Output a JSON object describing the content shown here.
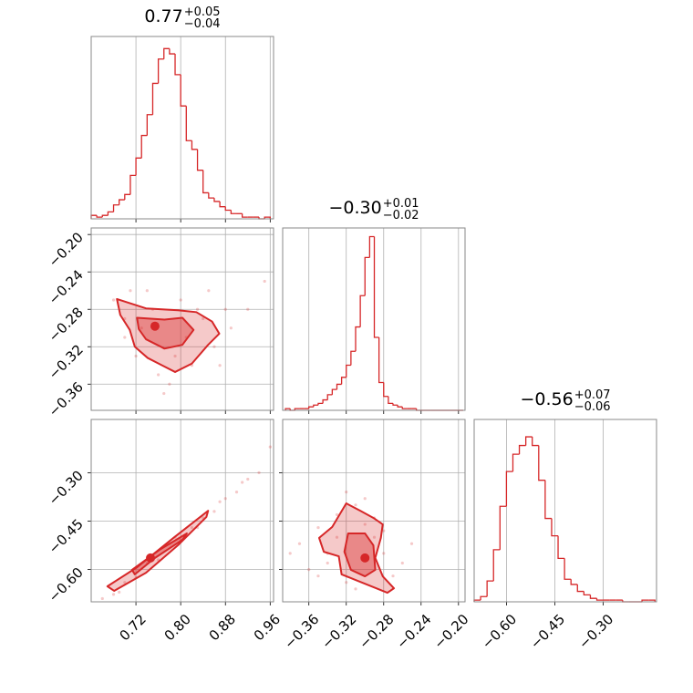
{
  "chart_data": {
    "type": "corner",
    "color": "#d62728",
    "grid": true,
    "parameters": [
      {
        "title": "0.77",
        "title_upper": "+0.05",
        "title_lower": "−0.04",
        "lim": [
          0.64,
          0.966
        ],
        "ticks": [
          0.72,
          {
            "value": 0.8,
            "label": "0.80"
          },
          0.88,
          0.96
        ],
        "bins": [
          0.64,
          0.65,
          0.66,
          0.67,
          0.68,
          0.69,
          0.7,
          0.71,
          0.72,
          0.73,
          0.74,
          0.75,
          0.76,
          0.77,
          0.78,
          0.79,
          0.8,
          0.81,
          0.82,
          0.83,
          0.84,
          0.85,
          0.86,
          0.87,
          0.88,
          0.89,
          0.9,
          0.91,
          0.92,
          0.93,
          0.94,
          0.95,
          0.96
        ],
        "counts": [
          2,
          1,
          2,
          4,
          8,
          11,
          14,
          25,
          35,
          48,
          60,
          78,
          92,
          98,
          95,
          83,
          65,
          45,
          40,
          28,
          15,
          12,
          10,
          7,
          5,
          3,
          3,
          1,
          1,
          1,
          0,
          1
        ],
        "ylim": [
          0,
          105
        ]
      },
      {
        "title": "−0.30",
        "title_upper": "+0.01",
        "title_lower": "−0.02",
        "lim": [
          -0.388,
          -0.193
        ],
        "ticks": [
          {
            "value": -0.36,
            "label": "−0.36"
          },
          {
            "value": -0.32,
            "label": "−0.32"
          },
          {
            "value": -0.28,
            "label": "−0.28"
          },
          {
            "value": -0.24,
            "label": "−0.24"
          },
          {
            "value": -0.2,
            "label": "−0.20"
          }
        ],
        "bins": [
          -0.385,
          -0.38,
          -0.375,
          -0.37,
          -0.365,
          -0.36,
          -0.355,
          -0.35,
          -0.345,
          -0.34,
          -0.335,
          -0.33,
          -0.325,
          -0.32,
          -0.315,
          -0.31,
          -0.305,
          -0.3,
          -0.295,
          -0.29,
          -0.285,
          -0.28,
          -0.275,
          -0.27,
          -0.265,
          -0.26,
          -0.255,
          -0.25,
          -0.245,
          -0.24,
          -0.235,
          -0.23,
          -0.225,
          -0.22,
          -0.215,
          -0.21,
          -0.205,
          -0.2,
          -0.195
        ],
        "counts": [
          1,
          0,
          1,
          1,
          1,
          2,
          3,
          4,
          6,
          9,
          12,
          15,
          19,
          26,
          34,
          48,
          66,
          88,
          100,
          42,
          16,
          8,
          4,
          3,
          2,
          1,
          1,
          1,
          0,
          0,
          0,
          0,
          0,
          0,
          0,
          0,
          0,
          0
        ],
        "ylim": [
          0,
          105
        ],
        "joint": [
          {
            "points": {
              "x": [
                0.68,
                0.7,
                0.72,
                0.74,
                0.76,
                0.78,
                0.8,
                0.82,
                0.84,
                0.86,
                0.88,
                0.7,
                0.73,
                0.77,
                0.81,
                0.85,
                0.89,
                0.75,
                0.79,
                0.83,
                0.87,
                0.92,
                0.95,
                0.71
              ],
              "y": [
                -0.27,
                -0.31,
                -0.33,
                -0.26,
                -0.35,
                -0.36,
                -0.27,
                -0.34,
                -0.29,
                -0.32,
                -0.28,
                -0.29,
                -0.3,
                -0.37,
                -0.31,
                -0.26,
                -0.3,
                -0.28,
                -0.33,
                -0.28,
                -0.34,
                -0.28,
                -0.25,
                -0.26
              ]
            },
            "contours": [
              {
                "x": [
                  0.686,
                  0.738,
                  0.795,
                  0.828,
                  0.856,
                  0.869,
                  0.849,
                  0.82,
                  0.79,
                  0.767,
                  0.741,
                  0.718,
                  0.709,
                  0.692
                ],
                "y": [
                  -0.269,
                  -0.279,
                  -0.281,
                  -0.283,
                  -0.293,
                  -0.306,
                  -0.318,
                  -0.338,
                  -0.347,
                  -0.34,
                  -0.332,
                  -0.32,
                  -0.302,
                  -0.286
                ]
              },
              {
                "x": [
                  0.722,
                  0.771,
                  0.803,
                  0.823,
                  0.803,
                  0.771,
                  0.738,
                  0.725
                ],
                "y": [
                  -0.289,
                  -0.291,
                  -0.289,
                  -0.302,
                  -0.318,
                  -0.322,
                  -0.312,
                  -0.301
                ]
              }
            ],
            "peak": {
              "x": 0.754,
              "y": -0.298
            }
          }
        ]
      },
      {
        "title": "−0.56",
        "title_upper": "+0.07",
        "title_lower": "−0.06",
        "lim": [
          -0.7,
          -0.135
        ],
        "ticks": [
          {
            "value": -0.6,
            "label": "−0.60"
          },
          {
            "value": -0.45,
            "label": "−0.45"
          },
          {
            "value": -0.3,
            "label": "−0.30"
          }
        ],
        "bins": [
          -0.7,
          -0.68,
          -0.66,
          -0.64,
          -0.62,
          -0.6,
          -0.58,
          -0.56,
          -0.54,
          -0.52,
          -0.5,
          -0.48,
          -0.46,
          -0.44,
          -0.42,
          -0.4,
          -0.38,
          -0.36,
          -0.34,
          -0.32,
          -0.3,
          -0.28,
          -0.26,
          -0.24,
          -0.22,
          -0.2,
          -0.18,
          -0.16,
          -0.14
        ],
        "counts": [
          1,
          3,
          12,
          30,
          55,
          75,
          85,
          90,
          95,
          90,
          70,
          48,
          38,
          25,
          13,
          10,
          6,
          4,
          2,
          1,
          1,
          1,
          1,
          0,
          0,
          0,
          1,
          1
        ],
        "ylim": [
          0,
          105
        ],
        "joint": [
          {
            "points": {
              "x": [
                0.66,
                0.68,
                0.7,
                0.72,
                0.74,
                0.76,
                0.78,
                0.8,
                0.82,
                0.84,
                0.86,
                0.88,
                0.9,
                0.92,
                0.94,
                0.96,
                0.75,
                0.83,
                0.87,
                0.91,
                0.69,
                0.79
              ],
              "y": [
                -0.69,
                -0.677,
                -0.64,
                -0.625,
                -0.58,
                -0.57,
                -0.52,
                -0.51,
                -0.47,
                -0.44,
                -0.42,
                -0.38,
                -0.36,
                -0.32,
                -0.3,
                -0.22,
                -0.56,
                -0.47,
                -0.39,
                -0.33,
                -0.67,
                -0.5
              ]
            },
            "contours": [
              {
                "x": [
                  0.669,
                  0.722,
                  0.787,
                  0.849,
                  0.846,
                  0.795,
                  0.738,
                  0.681
                ],
                "y": [
                  -0.652,
                  -0.593,
                  -0.502,
                  -0.418,
                  -0.437,
                  -0.525,
                  -0.61,
                  -0.666
                ]
              },
              {
                "x": [
                  0.713,
                  0.762,
                  0.811,
                  0.803,
                  0.754,
                  0.718
                ],
                "y": [
                  -0.601,
                  -0.539,
                  -0.488,
                  -0.508,
                  -0.564,
                  -0.615
                ]
              }
            ],
            "peak": {
              "x": 0.746,
              "y": -0.564
            }
          },
          {
            "points": {
              "x": [
                -0.37,
                -0.35,
                -0.34,
                -0.33,
                -0.32,
                -0.31,
                -0.3,
                -0.29,
                -0.28,
                -0.27,
                -0.36,
                -0.34,
                -0.31,
                -0.29,
                -0.33,
                -0.3,
                -0.26,
                -0.38,
                -0.32,
                -0.28,
                -0.25,
                -0.35
              ],
              "y": [
                -0.52,
                -0.47,
                -0.58,
                -0.43,
                -0.64,
                -0.4,
                -0.46,
                -0.5,
                -0.55,
                -0.62,
                -0.6,
                -0.55,
                -0.66,
                -0.44,
                -0.5,
                -0.38,
                -0.58,
                -0.55,
                -0.36,
                -0.48,
                -0.52,
                -0.62
              ]
            },
            "contours": [
              {
                "x": [
                  -0.349,
                  -0.335,
                  -0.32,
                  -0.305,
                  -0.291,
                  -0.281,
                  -0.283,
                  -0.289,
                  -0.281,
                  -0.269,
                  -0.276,
                  -0.3,
                  -0.325,
                  -0.328,
                  -0.344
                ],
                "y": [
                  -0.502,
                  -0.468,
                  -0.395,
                  -0.418,
                  -0.44,
                  -0.46,
                  -0.502,
                  -0.564,
                  -0.621,
                  -0.658,
                  -0.672,
                  -0.644,
                  -0.615,
                  -0.559,
                  -0.545
                ]
              },
              {
                "x": [
                  -0.318,
                  -0.3,
                  -0.291,
                  -0.289,
                  -0.3,
                  -0.315,
                  -0.322
                ],
                "y": [
                  -0.488,
                  -0.488,
                  -0.525,
                  -0.601,
                  -0.621,
                  -0.601,
                  -0.545
                ]
              }
            ],
            "peak": {
              "x": -0.3,
              "y": -0.564
            }
          }
        ]
      }
    ]
  }
}
